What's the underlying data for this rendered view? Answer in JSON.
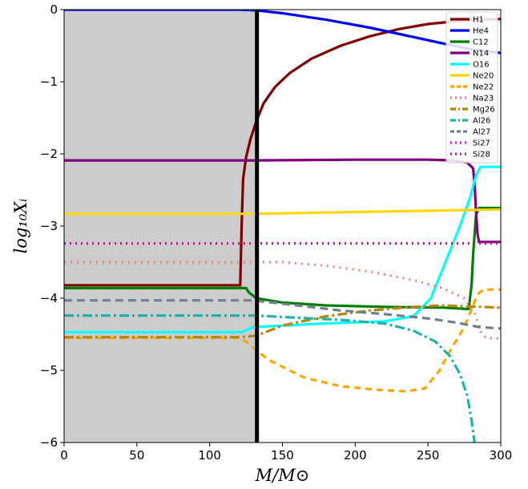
{
  "chart_data": {
    "type": "line",
    "title": "",
    "xlabel": "M/M⊙",
    "ylabel": "log₁₀Xᵢ",
    "xlim": [
      0,
      300
    ],
    "ylim": [
      -6,
      0
    ],
    "x_ticks": [
      "0",
      "50",
      "100",
      "150",
      "200",
      "250",
      "300"
    ],
    "y_ticks": [
      "0",
      "−1",
      "−2",
      "−3",
      "−4",
      "−5",
      "−6"
    ],
    "legend_position": "top-right",
    "grid": false,
    "shaded_region": {
      "x_from": 0,
      "x_to": 132.5,
      "color": "#cccccc"
    },
    "vertical_line": {
      "x": 132.5,
      "color": "#000000"
    },
    "series": [
      {
        "name": "H1",
        "color": "#800000",
        "dash": "solid",
        "points": [
          [
            0,
            -3.82
          ],
          [
            121,
            -3.82
          ],
          [
            122,
            -3.0
          ],
          [
            123,
            -2.35
          ],
          [
            125,
            -2.05
          ],
          [
            128,
            -1.8
          ],
          [
            132,
            -1.55
          ],
          [
            137,
            -1.3
          ],
          [
            145,
            -1.07
          ],
          [
            155,
            -0.88
          ],
          [
            170,
            -0.68
          ],
          [
            190,
            -0.5
          ],
          [
            210,
            -0.37
          ],
          [
            230,
            -0.27
          ],
          [
            250,
            -0.2
          ],
          [
            270,
            -0.16
          ],
          [
            285,
            -0.14
          ],
          [
            300,
            -0.13
          ]
        ]
      },
      {
        "name": "He4",
        "color": "#0000ee",
        "dash": "solid",
        "points": [
          [
            0,
            0
          ],
          [
            120,
            0
          ],
          [
            132,
            -0.01
          ],
          [
            150,
            -0.05
          ],
          [
            180,
            -0.14
          ],
          [
            210,
            -0.25
          ],
          [
            240,
            -0.38
          ],
          [
            265,
            -0.49
          ],
          [
            282,
            -0.56
          ],
          [
            300,
            -0.6
          ]
        ]
      },
      {
        "name": "C12",
        "color": "#007f00",
        "dash": "solid",
        "points": [
          [
            0,
            -3.86
          ],
          [
            125,
            -3.86
          ],
          [
            127,
            -3.92
          ],
          [
            132,
            -4.0
          ],
          [
            150,
            -4.06
          ],
          [
            180,
            -4.1
          ],
          [
            220,
            -4.12
          ],
          [
            260,
            -4.13
          ],
          [
            278,
            -4.15
          ],
          [
            280,
            -3.8
          ],
          [
            281,
            -3.4
          ],
          [
            283,
            -2.85
          ],
          [
            285,
            -2.75
          ],
          [
            300,
            -2.75
          ]
        ]
      },
      {
        "name": "N14",
        "color": "#800080",
        "dash": "solid",
        "points": [
          [
            0,
            -2.09
          ],
          [
            130,
            -2.09
          ],
          [
            200,
            -2.08
          ],
          [
            250,
            -2.08
          ],
          [
            268,
            -2.09
          ],
          [
            277,
            -2.12
          ],
          [
            281,
            -2.2
          ],
          [
            282,
            -2.4
          ],
          [
            283,
            -2.8
          ],
          [
            284,
            -3.1
          ],
          [
            285,
            -3.22
          ],
          [
            300,
            -3.22
          ]
        ]
      },
      {
        "name": "O16",
        "color": "#00ffff",
        "dash": "solid",
        "points": [
          [
            0,
            -4.47
          ],
          [
            122,
            -4.47
          ],
          [
            130,
            -4.4
          ],
          [
            150,
            -4.38
          ],
          [
            180,
            -4.35
          ],
          [
            220,
            -4.32
          ],
          [
            240,
            -4.25
          ],
          [
            252,
            -4.0
          ],
          [
            262,
            -3.5
          ],
          [
            272,
            -3.0
          ],
          [
            279,
            -2.6
          ],
          [
            283,
            -2.3
          ],
          [
            286,
            -2.18
          ],
          [
            300,
            -2.18
          ]
        ]
      },
      {
        "name": "Ne20",
        "color": "#ffd700",
        "dash": "solid",
        "points": [
          [
            0,
            -2.83
          ],
          [
            130,
            -2.83
          ],
          [
            300,
            -2.77
          ]
        ]
      },
      {
        "name": "Ne22",
        "color": "#ffa500",
        "dash": "8,6",
        "points": [
          [
            0,
            -4.55
          ],
          [
            120,
            -4.55
          ],
          [
            125,
            -4.6
          ],
          [
            140,
            -4.85
          ],
          [
            165,
            -5.1
          ],
          [
            190,
            -5.22
          ],
          [
            215,
            -5.27
          ],
          [
            235,
            -5.29
          ],
          [
            248,
            -5.25
          ],
          [
            258,
            -5.0
          ],
          [
            266,
            -4.7
          ],
          [
            275,
            -4.4
          ],
          [
            280,
            -4.15
          ],
          [
            284,
            -3.95
          ],
          [
            288,
            -3.88
          ],
          [
            300,
            -3.88
          ]
        ]
      },
      {
        "name": "Na23",
        "color": "#f08080",
        "dash": "2,6",
        "points": [
          [
            0,
            -3.5
          ],
          [
            130,
            -3.5
          ],
          [
            150,
            -3.5
          ],
          [
            180,
            -3.55
          ],
          [
            210,
            -3.63
          ],
          [
            240,
            -3.75
          ],
          [
            260,
            -3.86
          ],
          [
            275,
            -4.0
          ],
          [
            282,
            -4.2
          ],
          [
            287,
            -4.5
          ],
          [
            290,
            -4.55
          ],
          [
            300,
            -4.56
          ]
        ]
      },
      {
        "name": "Mg26",
        "color": "#b8860b",
        "dash": "12,4,3,4",
        "points": [
          [
            0,
            -4.54
          ],
          [
            120,
            -4.54
          ],
          [
            132,
            -4.52
          ],
          [
            150,
            -4.38
          ],
          [
            180,
            -4.25
          ],
          [
            210,
            -4.17
          ],
          [
            240,
            -4.12
          ],
          [
            260,
            -4.1
          ],
          [
            300,
            -4.13
          ]
        ]
      },
      {
        "name": "Al26",
        "color": "#20b2aa",
        "dash": "12,4,3,4",
        "points": [
          [
            0,
            -4.24
          ],
          [
            130,
            -4.24
          ],
          [
            160,
            -4.27
          ],
          [
            190,
            -4.3
          ],
          [
            220,
            -4.35
          ],
          [
            240,
            -4.45
          ],
          [
            255,
            -4.6
          ],
          [
            265,
            -4.8
          ],
          [
            272,
            -5.05
          ],
          [
            277,
            -5.35
          ],
          [
            280,
            -5.7
          ],
          [
            282,
            -6.0
          ]
        ]
      },
      {
        "name": "Al27",
        "color": "#708090",
        "dash": "10,6",
        "points": [
          [
            0,
            -4.03
          ],
          [
            130,
            -4.03
          ],
          [
            160,
            -4.1
          ],
          [
            190,
            -4.17
          ],
          [
            220,
            -4.22
          ],
          [
            250,
            -4.28
          ],
          [
            270,
            -4.34
          ],
          [
            285,
            -4.4
          ],
          [
            300,
            -4.42
          ]
        ]
      },
      {
        "name": "Si27",
        "color": "#ff00ff",
        "dash": "2,6",
        "points": []
      },
      {
        "name": "Si28",
        "color": "#c71585",
        "dash": "2,5",
        "points": [
          [
            0,
            -3.24
          ],
          [
            300,
            -3.24
          ]
        ]
      }
    ]
  }
}
